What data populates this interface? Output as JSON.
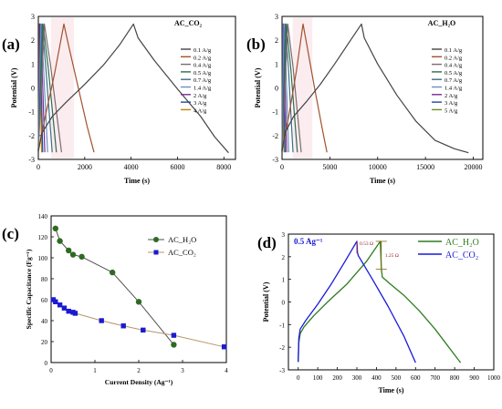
{
  "chart_data": [
    {
      "type": "line",
      "panel": "(a)",
      "title": "AC_CO₂",
      "xlabel": "Time (s)",
      "ylabel": "Potential (V)",
      "xlim": [
        0,
        8500
      ],
      "ylim": [
        -3,
        3
      ],
      "xticks": [
        0,
        2000,
        4000,
        6000,
        8000
      ],
      "yticks": [
        -3,
        -2,
        -1,
        0,
        1,
        2,
        3
      ],
      "grid": false,
      "legend_position": "right",
      "series": [
        {
          "name": "0.1 A/g",
          "color": "#444444",
          "x": [
            0,
            150,
            600,
            1200,
            2000,
            2800,
            3500,
            4100,
            4300,
            5000,
            6000,
            7000,
            7600,
            8200
          ],
          "y": [
            -2.65,
            -1.9,
            -1.2,
            -0.6,
            0.15,
            0.95,
            1.8,
            2.68,
            2.1,
            1.15,
            -0.05,
            -1.2,
            -2.05,
            -2.72
          ]
        },
        {
          "name": "0.2 A/g",
          "color": "#a0522d",
          "x": [
            0,
            300,
            700,
            1100,
            1300,
            1700,
            2100,
            2400
          ],
          "y": [
            -2.65,
            -1.2,
            0.6,
            2.68,
            1.8,
            0.1,
            -1.6,
            -2.7
          ]
        },
        {
          "name": "0.4 A/g",
          "color": "#7e6a70",
          "x": [
            0,
            260,
            520,
            1000
          ],
          "y": [
            -2.65,
            2.68,
            1.0,
            -2.7
          ]
        },
        {
          "name": "0.5 A/g",
          "color": "#2e6b4f",
          "x": [
            0,
            200,
            420,
            780
          ],
          "y": [
            -2.65,
            2.68,
            0.9,
            -2.7
          ]
        },
        {
          "name": "0.7 A/g",
          "color": "#3d6e8a",
          "x": [
            0,
            160,
            320,
            600
          ],
          "y": [
            -2.65,
            2.68,
            0.9,
            -2.7
          ]
        },
        {
          "name": "1.4 A/g",
          "color": "#6b8fbf",
          "x": [
            0,
            110,
            220,
            400
          ],
          "y": [
            -2.65,
            2.68,
            0.9,
            -2.7
          ]
        },
        {
          "name": "2 A/g",
          "color": "#7b2b91",
          "x": [
            0,
            80,
            160,
            280
          ],
          "y": [
            -2.65,
            2.68,
            0.9,
            -2.7
          ]
        },
        {
          "name": "3 A/g",
          "color": "#1f4a9a",
          "x": [
            0,
            55,
            110,
            190
          ],
          "y": [
            -2.65,
            2.68,
            0.9,
            -2.7
          ]
        },
        {
          "name": "4 A/g",
          "color": "#b8860b",
          "x": [
            0,
            40,
            80,
            140
          ],
          "y": [
            -2.65,
            2.68,
            0.9,
            -2.7
          ]
        }
      ]
    },
    {
      "type": "line",
      "panel": "(b)",
      "title": "AC_H₂O",
      "xlabel": "Time (s)",
      "ylabel": "Potential (V)",
      "xlim": [
        0,
        21000
      ],
      "ylim": [
        -3,
        3
      ],
      "xticks": [
        0,
        5000,
        10000,
        15000,
        20000
      ],
      "yticks": [
        -3,
        -2,
        -1,
        0,
        1,
        2,
        3
      ],
      "grid": false,
      "legend_position": "right",
      "series": [
        {
          "name": "0.1 A/g",
          "color": "#444444",
          "x": [
            0,
            300,
            1200,
            2500,
            4000,
            5500,
            7000,
            8300,
            8600,
            10000,
            12000,
            14000,
            16000,
            18000,
            19500
          ],
          "y": [
            -2.65,
            -1.9,
            -1.2,
            -0.6,
            0.15,
            1.0,
            1.9,
            2.68,
            2.1,
            1.0,
            -0.3,
            -1.4,
            -2.2,
            -2.55,
            -2.72
          ]
        },
        {
          "name": "0.2 A/g",
          "color": "#a0522d",
          "x": [
            0,
            700,
            1500,
            2200,
            2600,
            3400,
            4200,
            4700
          ],
          "y": [
            -2.65,
            -1.2,
            0.7,
            2.68,
            1.8,
            0.0,
            -1.7,
            -2.7
          ]
        },
        {
          "name": "0.4 A/g",
          "color": "#7e6a70",
          "x": [
            0,
            600,
            1150,
            2000
          ],
          "y": [
            -2.65,
            2.68,
            0.9,
            -2.7
          ]
        },
        {
          "name": "0.5 A/g",
          "color": "#2e6b4f",
          "x": [
            0,
            450,
            900,
            1600
          ],
          "y": [
            -2.65,
            2.68,
            0.9,
            -2.7
          ]
        },
        {
          "name": "0.7 A/g",
          "color": "#3d6e8a",
          "x": [
            0,
            330,
            660,
            1150
          ],
          "y": [
            -2.65,
            2.68,
            0.9,
            -2.7
          ]
        },
        {
          "name": "1.4 A/g",
          "color": "#6b8fbf",
          "x": [
            0,
            200,
            400,
            700
          ],
          "y": [
            -2.65,
            2.68,
            0.9,
            -2.7
          ]
        },
        {
          "name": "2 A/g",
          "color": "#7b2b91",
          "x": [
            0,
            140,
            280,
            480
          ],
          "y": [
            -2.65,
            2.68,
            0.9,
            -2.7
          ]
        },
        {
          "name": "3 A/g",
          "color": "#1f4a9a",
          "x": [
            0,
            90,
            180,
            320
          ],
          "y": [
            -2.65,
            2.68,
            0.9,
            -2.7
          ]
        },
        {
          "name": "5 A/g",
          "color": "#6b8e23",
          "x": [
            0,
            60,
            120,
            210
          ],
          "y": [
            -2.65,
            2.68,
            0.9,
            -2.7
          ]
        }
      ]
    },
    {
      "type": "scatter",
      "panel": "(c)",
      "xlabel": "Current Density (Ag⁻¹)",
      "ylabel": "Specific Capacitance (Fg⁻¹)",
      "xlim": [
        0,
        4
      ],
      "ylim": [
        0,
        140
      ],
      "xticks": [
        0,
        1,
        2,
        3,
        4
      ],
      "yticks": [
        0,
        20,
        40,
        60,
        80,
        100,
        120,
        140
      ],
      "grid": false,
      "legend_position": "top-right",
      "series": [
        {
          "name": "AC_H₂O",
          "color": "#2e6b22",
          "marker": "circle",
          "line_color": "#505050",
          "x": [
            0.1,
            0.2,
            0.4,
            0.5,
            0.7,
            1.4,
            2.0,
            2.8
          ],
          "y": [
            128,
            116,
            107,
            103,
            101,
            86,
            58,
            17
          ]
        },
        {
          "name": "AC_CO₂",
          "color": "#1a1ad0",
          "marker": "square",
          "line_color": "#b8956a",
          "x": [
            0.05,
            0.1,
            0.2,
            0.3,
            0.4,
            0.5,
            0.55,
            1.15,
            1.65,
            2.1,
            2.8,
            3.95
          ],
          "y": [
            60,
            58,
            55,
            52,
            49,
            48,
            47,
            40,
            35,
            31,
            26,
            15
          ]
        }
      ]
    },
    {
      "type": "line",
      "panel": "(d)",
      "annotation": "0.5 Ag⁻¹",
      "xlabel": "Time (s)",
      "ylabel": "Potential (V)",
      "xlim": [
        -50,
        1000
      ],
      "ylim": [
        -3,
        3
      ],
      "xticks": [
        0,
        100,
        200,
        300,
        400,
        500,
        600,
        700,
        800,
        900,
        1000
      ],
      "yticks": [
        -3,
        -2,
        -1,
        0,
        1,
        2,
        3
      ],
      "grid": false,
      "legend_position": "top-right",
      "drop_labels": [
        "0.53 Ω",
        "1.25 Ω"
      ],
      "series": [
        {
          "name": "AC_H₂O",
          "color": "#2e7d1e",
          "x": [
            0,
            3,
            10,
            30,
            80,
            150,
            250,
            350,
            420,
            425,
            430,
            470,
            540,
            620,
            700,
            770,
            830
          ],
          "y": [
            -2.65,
            -1.8,
            -1.4,
            -1.1,
            -0.6,
            0.0,
            0.8,
            1.8,
            2.68,
            1.45,
            1.1,
            0.8,
            0.3,
            -0.4,
            -1.2,
            -2.0,
            -2.68
          ]
        },
        {
          "name": "AC_CO₂",
          "color": "#1a1ad8",
          "x": [
            0,
            3,
            10,
            40,
            100,
            170,
            240,
            300,
            303,
            307,
            380,
            460,
            540,
            600
          ],
          "y": [
            -2.65,
            -1.6,
            -1.2,
            -0.8,
            -0.1,
            0.8,
            1.8,
            2.68,
            2.2,
            2.05,
            1.0,
            -0.2,
            -1.5,
            -2.68
          ]
        }
      ]
    }
  ],
  "panels": {
    "a": {
      "label": "(a)"
    },
    "b": {
      "label": "(b)"
    },
    "c": {
      "label": "(c)"
    },
    "d": {
      "label": "(d)"
    }
  }
}
